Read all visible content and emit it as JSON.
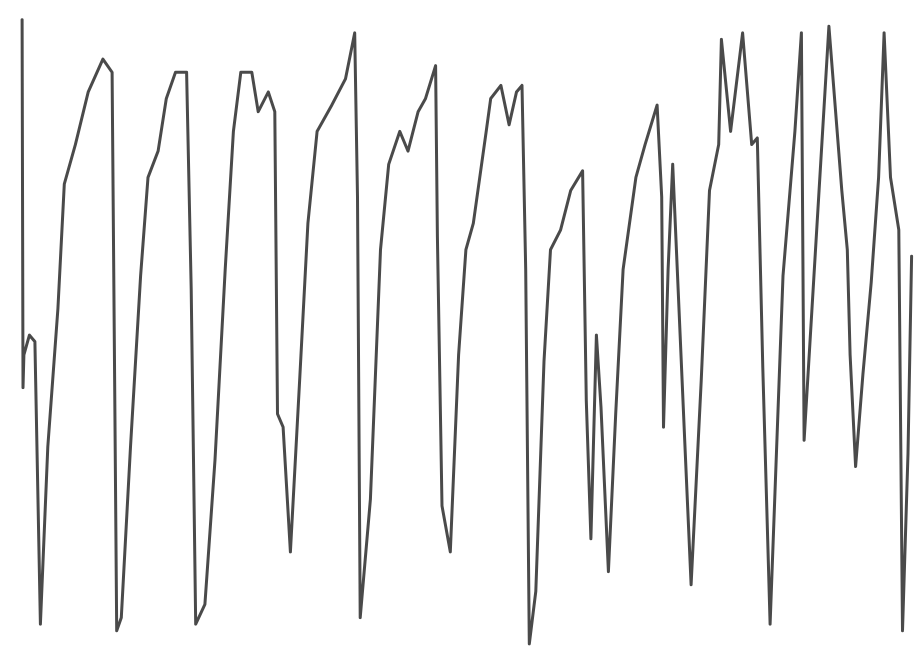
{
  "chart_data": {
    "type": "line",
    "title": "",
    "xlabel": "",
    "ylabel": "",
    "grid": false,
    "axes_visible": false,
    "legend": "none",
    "xlim": [
      0,
      100
    ],
    "ylim": [
      0,
      100
    ],
    "series": [
      {
        "color": "#4a4a4a",
        "points": [
          [
            2.4,
            97
          ],
          [
            2.5,
            41
          ],
          [
            2.6,
            46
          ],
          [
            3.2,
            49
          ],
          [
            3.8,
            48
          ],
          [
            4.4,
            5
          ],
          [
            5.2,
            32
          ],
          [
            6.3,
            53
          ],
          [
            7.0,
            72
          ],
          [
            8.2,
            78
          ],
          [
            9.6,
            86
          ],
          [
            11.2,
            91
          ],
          [
            12.2,
            89
          ],
          [
            12.7,
            4
          ],
          [
            13.2,
            6
          ],
          [
            14.2,
            32
          ],
          [
            15.3,
            58
          ],
          [
            16.1,
            73
          ],
          [
            17.2,
            77
          ],
          [
            18.1,
            85
          ],
          [
            19.1,
            89
          ],
          [
            20.3,
            89
          ],
          [
            20.8,
            56
          ],
          [
            21.3,
            5
          ],
          [
            22.3,
            8
          ],
          [
            23.4,
            30
          ],
          [
            24.5,
            59
          ],
          [
            25.4,
            80
          ],
          [
            26.2,
            89
          ],
          [
            27.4,
            89
          ],
          [
            28.1,
            83
          ],
          [
            29.2,
            86
          ],
          [
            29.9,
            83
          ],
          [
            30.2,
            37
          ],
          [
            30.8,
            35
          ],
          [
            31.6,
            16
          ],
          [
            32.6,
            42
          ],
          [
            33.5,
            66
          ],
          [
            34.5,
            80
          ],
          [
            36.1,
            84
          ],
          [
            37.6,
            88
          ],
          [
            38.6,
            95
          ],
          [
            38.9,
            70
          ],
          [
            39.2,
            6
          ],
          [
            40.3,
            24
          ],
          [
            41.4,
            62
          ],
          [
            42.3,
            75
          ],
          [
            43.5,
            80
          ],
          [
            44.4,
            77
          ],
          [
            45.5,
            83
          ],
          [
            46.3,
            85
          ],
          [
            47.4,
            90
          ],
          [
            47.6,
            64
          ],
          [
            48.1,
            23
          ],
          [
            49.0,
            16
          ],
          [
            49.9,
            46
          ],
          [
            50.7,
            62
          ],
          [
            51.5,
            66
          ],
          [
            52.9,
            80
          ],
          [
            53.4,
            85
          ],
          [
            54.5,
            87
          ],
          [
            55.4,
            81
          ],
          [
            56.2,
            86
          ],
          [
            56.8,
            87
          ],
          [
            57.2,
            59
          ],
          [
            57.6,
            2
          ],
          [
            58.3,
            10
          ],
          [
            59.2,
            45
          ],
          [
            59.9,
            62
          ],
          [
            61.0,
            65
          ],
          [
            62.1,
            71
          ],
          [
            63.4,
            74
          ],
          [
            63.8,
            39
          ],
          [
            64.3,
            18
          ],
          [
            64.9,
            49
          ],
          [
            65.4,
            38
          ],
          [
            66.2,
            13
          ],
          [
            67.0,
            37
          ],
          [
            67.8,
            59
          ],
          [
            69.2,
            73
          ],
          [
            70.2,
            78
          ],
          [
            71.5,
            84
          ],
          [
            72.0,
            70
          ],
          [
            72.2,
            35
          ],
          [
            72.7,
            59
          ],
          [
            73.2,
            75
          ],
          [
            74.5,
            33
          ],
          [
            75.2,
            11
          ],
          [
            76.3,
            42
          ],
          [
            77.2,
            71
          ],
          [
            78.2,
            78
          ],
          [
            78.5,
            94
          ],
          [
            79.5,
            80
          ],
          [
            80.8,
            95
          ],
          [
            81.8,
            78
          ],
          [
            82.4,
            79
          ],
          [
            83.0,
            44
          ],
          [
            83.8,
            5
          ],
          [
            85.2,
            58
          ],
          [
            86.5,
            80
          ],
          [
            87.2,
            95
          ],
          [
            87.5,
            33
          ],
          [
            90.2,
            96
          ],
          [
            91.6,
            71
          ],
          [
            92.2,
            62
          ],
          [
            92.5,
            46
          ],
          [
            93.1,
            29
          ],
          [
            93.9,
            43
          ],
          [
            94.8,
            57
          ],
          [
            95.6,
            73
          ],
          [
            96.2,
            95
          ],
          [
            96.9,
            73
          ],
          [
            97.8,
            65
          ],
          [
            98.2,
            4
          ],
          [
            98.8,
            31
          ],
          [
            99.2,
            61
          ]
        ]
      }
    ]
  }
}
